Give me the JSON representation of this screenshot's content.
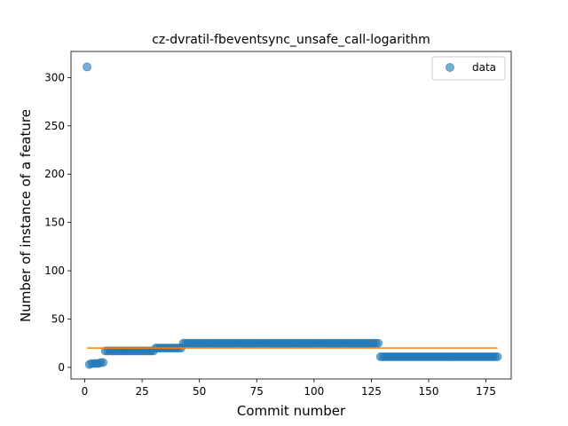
{
  "chart_data": {
    "type": "scatter",
    "title": "cz-dvratil-fbeventsync_unsafe_call-logarithm",
    "xlabel": "Commit number",
    "ylabel": "Number of instance of a feature",
    "xlim": [
      -6,
      186
    ],
    "ylim": [
      -12,
      327
    ],
    "xticks": [
      0,
      25,
      50,
      75,
      100,
      125,
      150,
      175
    ],
    "yticks": [
      0,
      50,
      100,
      150,
      200,
      250,
      300
    ],
    "legend": {
      "position": "top-right",
      "entries": [
        "data"
      ]
    },
    "series": [
      {
        "name": "data",
        "kind": "scatter",
        "color": "#1f77b4",
        "segments": [
          {
            "x_from": 1,
            "x_to": 1,
            "y": 311
          },
          {
            "x_from": 2,
            "x_to": 2,
            "y": 3
          },
          {
            "x_from": 3,
            "x_to": 6,
            "y": 4
          },
          {
            "x_from": 7,
            "x_to": 8,
            "y": 5
          },
          {
            "x_from": 9,
            "x_to": 30,
            "y": 17
          },
          {
            "x_from": 31,
            "x_to": 42,
            "y": 20
          },
          {
            "x_from": 43,
            "x_to": 128,
            "y": 25
          },
          {
            "x_from": 129,
            "x_to": 180,
            "y": 11
          }
        ]
      },
      {
        "kind": "line",
        "color": "#ff7f0e",
        "points": [
          [
            1,
            20
          ],
          [
            180,
            20
          ]
        ]
      }
    ]
  }
}
